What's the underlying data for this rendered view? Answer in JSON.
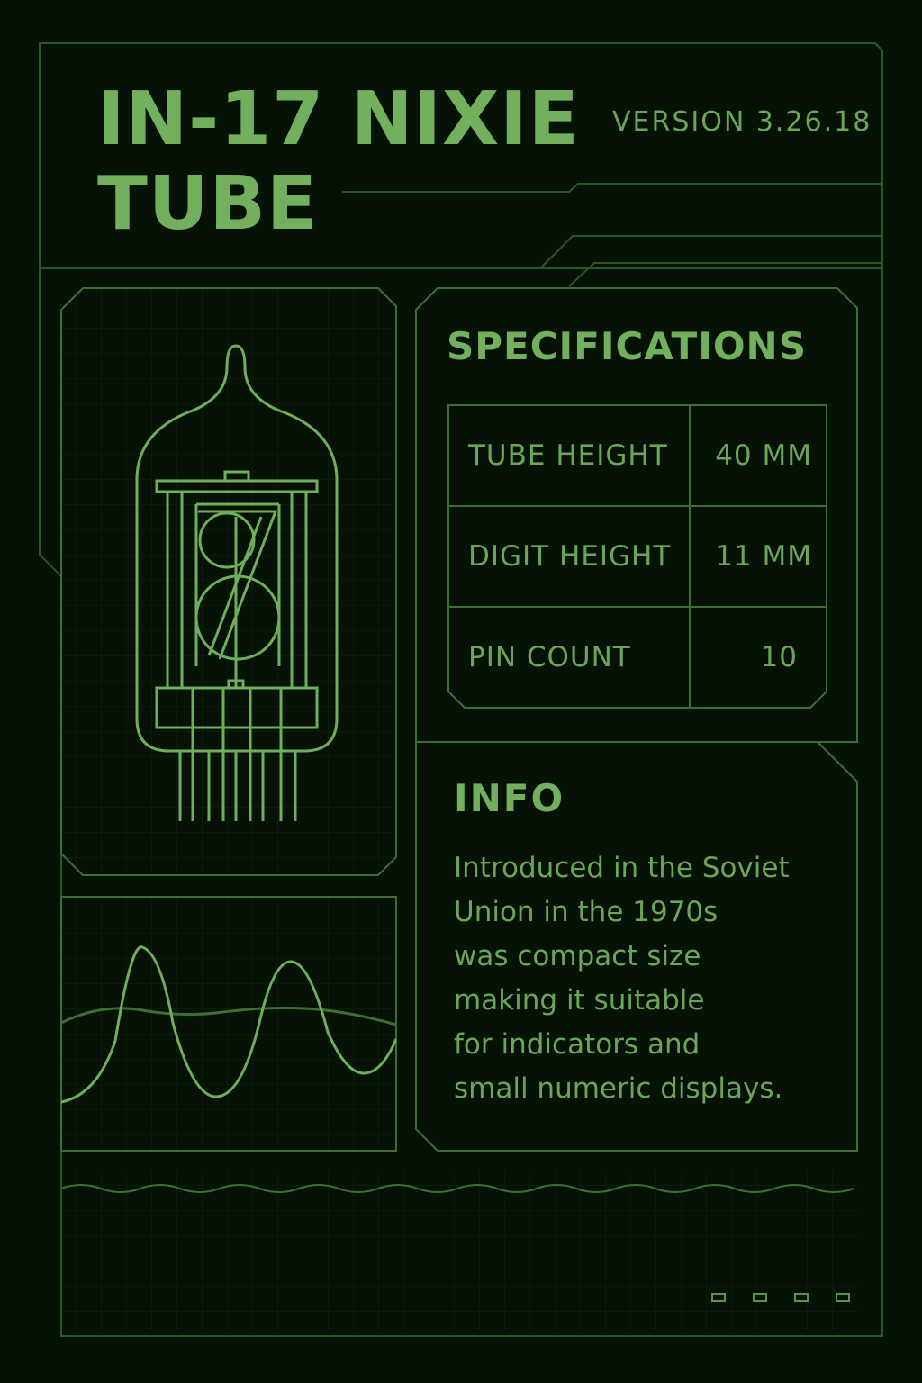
{
  "header": {
    "title_line1": "IN-17 NIXIE",
    "title_line2": "TUBE",
    "version": "VERSION 3.26.18"
  },
  "specifications": {
    "heading": "SPECIFICATIONS",
    "rows": [
      {
        "label": "TUBE HEIGHT",
        "value": "40 MM"
      },
      {
        "label": "DIGIT HEIGHT",
        "value": "11 MM"
      },
      {
        "label": "PIN COUNT",
        "value": "10"
      }
    ]
  },
  "info": {
    "heading": "INFO",
    "lines": [
      "Introduced in the Soviet",
      "Union in the 1970s",
      "was compact size",
      "making it suitable",
      "for indicators and",
      "small numeric displays."
    ]
  },
  "footer": {
    "indicator_count": 4
  },
  "colors": {
    "background": "#061206",
    "accent": "#72b05e",
    "line": "#3f6e34"
  },
  "icons": {
    "tube": "nixie-tube-icon",
    "waveform": "waveform-icon"
  }
}
